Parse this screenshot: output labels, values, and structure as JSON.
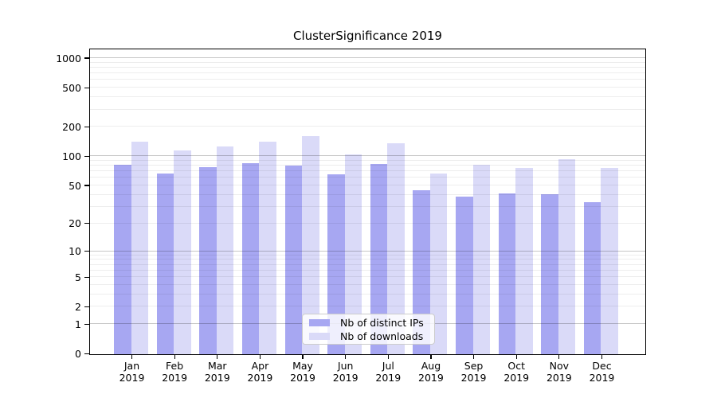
{
  "title": "ClusterSignificance 2019",
  "chart_data": {
    "type": "bar",
    "title": "ClusterSignificance 2019",
    "categories": [
      {
        "month": "Jan",
        "year": "2019"
      },
      {
        "month": "Feb",
        "year": "2019"
      },
      {
        "month": "Mar",
        "year": "2019"
      },
      {
        "month": "Apr",
        "year": "2019"
      },
      {
        "month": "May",
        "year": "2019"
      },
      {
        "month": "Jun",
        "year": "2019"
      },
      {
        "month": "Jul",
        "year": "2019"
      },
      {
        "month": "Aug",
        "year": "2019"
      },
      {
        "month": "Sep",
        "year": "2019"
      },
      {
        "month": "Oct",
        "year": "2019"
      },
      {
        "month": "Nov",
        "year": "2019"
      },
      {
        "month": "Dec",
        "year": "2019"
      }
    ],
    "series": [
      {
        "name": "Nb of distinct IPs",
        "color": "#a7a7f2",
        "values": [
          82,
          67,
          78,
          86,
          81,
          66,
          84,
          45,
          39,
          42,
          41,
          34
        ]
      },
      {
        "name": "Nb of downloads",
        "color": "#dadaf8",
        "values": [
          142,
          116,
          127,
          143,
          161,
          106,
          138,
          67,
          82,
          76,
          95,
          77
        ]
      }
    ],
    "yscale": "log10(value+1)",
    "yticks": [
      0,
      1,
      2,
      5,
      10,
      20,
      50,
      100,
      200,
      500,
      1000
    ],
    "ylim": [
      0,
      1230
    ],
    "grid": true,
    "legend_position": "lower-center"
  },
  "colors": {
    "major_gridline": "#c6c6c6",
    "minor_gridline": "#ededed",
    "axis_border": "#000000"
  }
}
